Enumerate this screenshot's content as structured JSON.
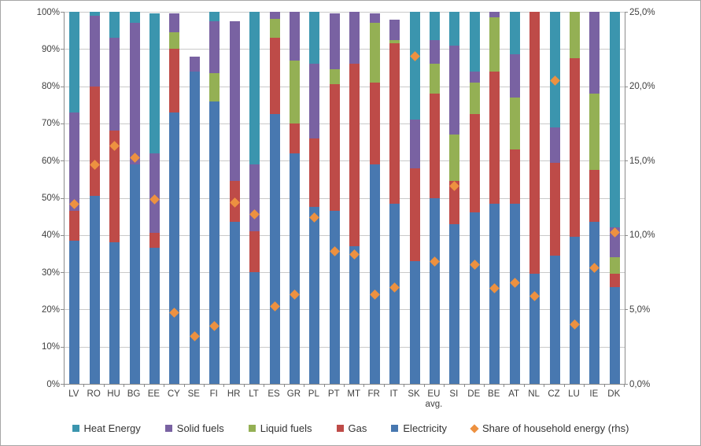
{
  "chart_data": {
    "type": "bar",
    "stacked": true,
    "title": "",
    "categories": [
      "LV",
      "RO",
      "HU",
      "BG",
      "EE",
      "CY",
      "SE",
      "FI",
      "HR",
      "LT",
      "ES",
      "GR",
      "PL",
      "PT",
      "MT",
      "FR",
      "IT",
      "SK",
      "EU avg.",
      "SI",
      "DE",
      "BE",
      "AT",
      "NL",
      "CZ",
      "LU",
      "IE",
      "DK"
    ],
    "series": [
      {
        "name": "Electricity",
        "color": "#4878B0",
        "values": [
          38.5,
          50.5,
          38,
          59,
          36.5,
          73,
          84,
          76,
          43.5,
          30,
          72.5,
          62,
          47.5,
          46.5,
          37,
          59,
          48.5,
          33,
          50,
          43,
          46,
          48.5,
          48.5,
          29.5,
          34.5,
          39.5,
          43.5,
          26
        ]
      },
      {
        "name": "Gas",
        "color": "#BE4B48",
        "values": [
          8,
          29.5,
          30,
          0,
          4,
          17,
          0,
          0,
          11,
          11,
          20.5,
          8,
          18.5,
          34,
          49,
          22,
          43,
          25,
          28,
          11.5,
          26.5,
          35.5,
          14.5,
          70.5,
          25,
          48,
          14,
          3.5
        ]
      },
      {
        "name": "Liquid fuels",
        "color": "#94B054",
        "values": [
          0,
          0,
          0,
          0,
          0,
          4.5,
          0,
          7.5,
          0,
          0,
          5,
          17,
          0,
          4,
          0,
          16,
          1,
          0,
          8,
          12.5,
          8.5,
          14.5,
          14,
          0,
          0,
          12.5,
          20.5,
          4.5
        ]
      },
      {
        "name": "Solid fuels",
        "color": "#7962A2",
        "values": [
          26.5,
          19,
          25,
          38,
          21.5,
          5,
          4,
          14,
          43,
          18,
          2,
          13,
          20,
          15,
          14,
          2.5,
          5.5,
          13,
          6.5,
          24,
          3,
          1.5,
          11.5,
          0,
          9.5,
          0,
          22,
          8
        ]
      },
      {
        "name": "Heat Energy",
        "color": "#3B95AE",
        "values": [
          27,
          1,
          7,
          3,
          37.5,
          0,
          0,
          2.5,
          0,
          41,
          0,
          0,
          14,
          0,
          0,
          0,
          0,
          29,
          7.5,
          9,
          16,
          0,
          11.5,
          0,
          31,
          0,
          0,
          58
        ]
      }
    ],
    "scatter_series": {
      "name": "Share of household energy (rhs)",
      "color": "#ED9140",
      "axis": "right",
      "values": [
        12.1,
        14.7,
        16.0,
        15.2,
        12.4,
        4.8,
        3.2,
        3.9,
        12.2,
        11.4,
        5.2,
        6.0,
        11.2,
        8.9,
        8.7,
        6.0,
        6.5,
        22.0,
        8.2,
        13.3,
        8.0,
        6.4,
        6.8,
        5.9,
        20.4,
        4.0,
        7.8,
        10.2
      ]
    },
    "left_axis": {
      "min": 0,
      "max": 100,
      "step": 10,
      "labels": [
        "100%",
        "90%",
        "80%",
        "70%",
        "60%",
        "50%",
        "40%",
        "30%",
        "20%",
        "10%",
        "0%"
      ]
    },
    "right_axis": {
      "min": 0,
      "max": 25,
      "step": 5,
      "labels": [
        "25,0%",
        "20,0%",
        "15,0%",
        "10,0%",
        "5,0%",
        "0,0%"
      ]
    },
    "grid": true,
    "legend_position": "bottom",
    "legend": [
      {
        "label": "Heat Energy",
        "marker": "square",
        "color": "#3B95AE"
      },
      {
        "label": "Solid fuels",
        "marker": "square",
        "color": "#7962A2"
      },
      {
        "label": "Liquid fuels",
        "marker": "square",
        "color": "#94B054"
      },
      {
        "label": "Gas",
        "marker": "square",
        "color": "#BE4B48"
      },
      {
        "label": "Electricity",
        "marker": "square",
        "color": "#4878B0"
      },
      {
        "label": "Share of household energy (rhs)",
        "marker": "diamond",
        "color": "#ED9140"
      }
    ]
  }
}
